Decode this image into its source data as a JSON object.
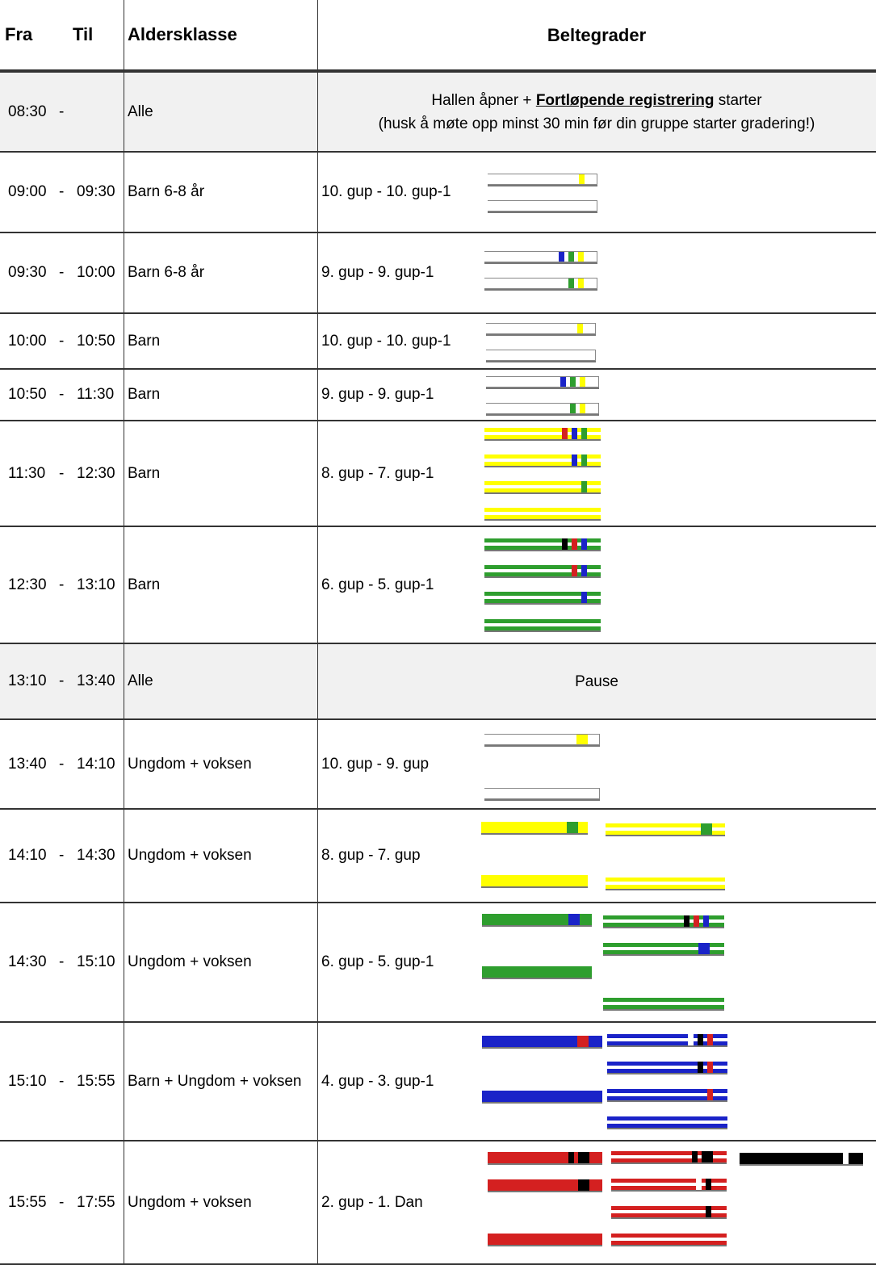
{
  "header": {
    "fra": "Fra",
    "til": "Til",
    "age": "Aldersklasse",
    "grades": "Beltegrader"
  },
  "rows": [
    {
      "fra": "08:30",
      "dash": "-",
      "til": "",
      "age": "Alle",
      "note": {
        "line1_pre": "Hallen åpner + ",
        "line1_link": "Fortløpende registrering",
        "line1_post": " starter",
        "line2": "(husk å møte opp minst 30 min før din gruppe starter gradering!)"
      }
    },
    {
      "fra": "09:00",
      "dash": "-",
      "til": "09:30",
      "age": "Barn 6-8 år",
      "grades": "10. gup - 10. gup-1"
    },
    {
      "fra": "09:30",
      "dash": "-",
      "til": "10:00",
      "age": "Barn 6-8 år",
      "grades": "9. gup - 9. gup-1"
    },
    {
      "fra": "10:00",
      "dash": "-",
      "til": "10:50",
      "age": "Barn",
      "grades": "10. gup - 10. gup-1"
    },
    {
      "fra": "10:50",
      "dash": "-",
      "til": "11:30",
      "age": "Barn",
      "grades": "9. gup - 9. gup-1"
    },
    {
      "fra": "11:30",
      "dash": "-",
      "til": "12:30",
      "age": "Barn",
      "grades": "8. gup - 7. gup-1"
    },
    {
      "fra": "12:30",
      "dash": "-",
      "til": "13:10",
      "age": "Barn",
      "grades": "6. gup - 5. gup-1"
    },
    {
      "fra": "13:10",
      "dash": "-",
      "til": "13:40",
      "age": "Alle",
      "pause": "Pause"
    },
    {
      "fra": "13:40",
      "dash": "-",
      "til": "14:10",
      "age": "Ungdom + voksen",
      "grades": "10. gup - 9. gup"
    },
    {
      "fra": "14:10",
      "dash": "-",
      "til": "14:30",
      "age": "Ungdom + voksen",
      "grades": "8. gup - 7. gup"
    },
    {
      "fra": "14:30",
      "dash": "-",
      "til": "15:10",
      "age": "Ungdom + voksen",
      "grades": "6. gup - 5. gup-1"
    },
    {
      "fra": "15:10",
      "dash": "-",
      "til": "15:55",
      "age": "Barn + Ungdom + voksen",
      "grades": "4. gup - 3. gup-1"
    },
    {
      "fra": "15:55",
      "dash": "-",
      "til": "17:55",
      "age": "Ungdom + voksen",
      "grades": "2. gup - 1. Dan"
    }
  ],
  "colors": {
    "white": "#ffffff",
    "yellow": "#ffff00",
    "green": "#2e9e2e",
    "blue": "#1a23c8",
    "red": "#d42020",
    "black": "#000000"
  }
}
